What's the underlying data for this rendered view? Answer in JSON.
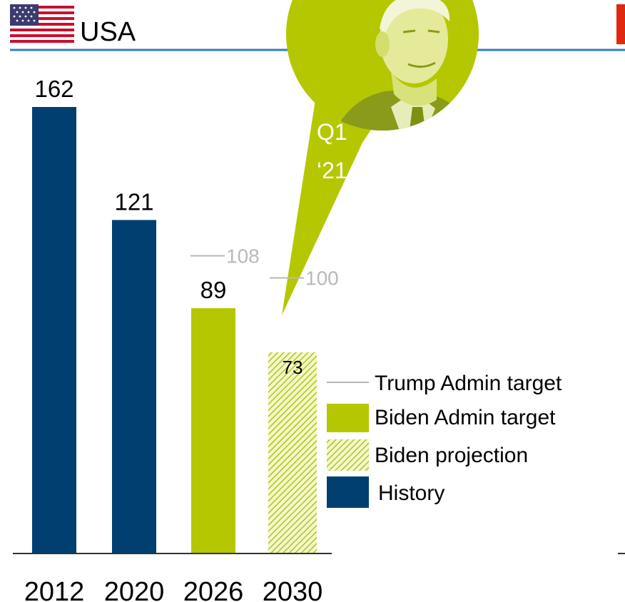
{
  "panel": {
    "title": "USA",
    "flag": "us-flag-icon"
  },
  "callout": {
    "line1": "Q1",
    "line2": "‘21",
    "image": "portrait-photo"
  },
  "chart_data": {
    "type": "bar",
    "categories": [
      "2012",
      "2020",
      "2026",
      "2030"
    ],
    "values": [
      162,
      121,
      89,
      73
    ],
    "kinds": [
      "History",
      "History",
      "Biden Admin target",
      "Biden projection"
    ],
    "trump_targets": [
      {
        "category": "2026",
        "value": 108
      },
      {
        "category": "2030",
        "value": 100
      }
    ],
    "value_labels": [
      "162",
      "121",
      "89",
      "73"
    ],
    "target_labels": [
      "108",
      "100"
    ],
    "ylim": [
      0,
      162
    ],
    "legend": {
      "placement": "right",
      "entries": [
        "Trump Admin target",
        "Biden Admin target",
        "Biden projection",
        "History"
      ]
    },
    "colors": {
      "history": "#003f6f",
      "biden_target": "#b5c700",
      "projection": "#c9d45a",
      "trump_target": "#b9b9b9",
      "title_rule": "#2f7fc4"
    },
    "grid": false
  }
}
